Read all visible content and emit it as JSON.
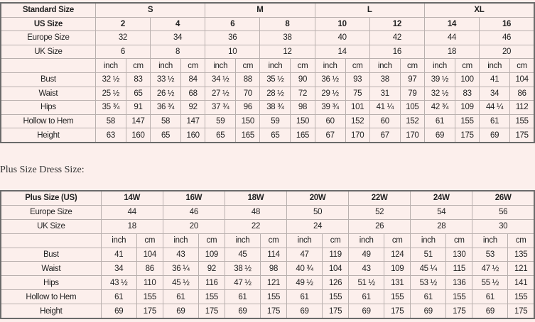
{
  "standard": {
    "header_label": "Standard Size",
    "groups": [
      "S",
      "M",
      "L",
      "XL"
    ],
    "us_label": "US Size",
    "us": [
      "2",
      "4",
      "6",
      "8",
      "10",
      "12",
      "14",
      "16"
    ],
    "europe_label": "Europe Size",
    "europe": [
      "32",
      "34",
      "36",
      "38",
      "40",
      "42",
      "44",
      "46"
    ],
    "uk_label": "UK Size",
    "uk": [
      "6",
      "8",
      "10",
      "12",
      "14",
      "16",
      "18",
      "20"
    ],
    "unit_inch": "inch",
    "unit_cm": "cm",
    "rows": [
      {
        "label": "Bust",
        "values": [
          "32 ½",
          "83",
          "33 ½",
          "84",
          "34 ½",
          "88",
          "35 ½",
          "90",
          "36 ½",
          "93",
          "38",
          "97",
          "39 ½",
          "100",
          "41",
          "104"
        ]
      },
      {
        "label": "Waist",
        "values": [
          "25 ½",
          "65",
          "26 ½",
          "68",
          "27 ½",
          "70",
          "28 ½",
          "72",
          "29 ½",
          "75",
          "31",
          "79",
          "32 ½",
          "83",
          "34",
          "86"
        ]
      },
      {
        "label": "Hips",
        "values": [
          "35 ¾",
          "91",
          "36 ¾",
          "92",
          "37 ¾",
          "96",
          "38 ¾",
          "98",
          "39 ¾",
          "101",
          "41 ¼",
          "105",
          "42 ¾",
          "109",
          "44 ¼",
          "112"
        ]
      },
      {
        "label": "Hollow to Hem",
        "values": [
          "58",
          "147",
          "58",
          "147",
          "59",
          "150",
          "59",
          "150",
          "60",
          "152",
          "60",
          "152",
          "61",
          "155",
          "61",
          "155"
        ]
      },
      {
        "label": "Height",
        "values": [
          "63",
          "160",
          "65",
          "160",
          "65",
          "165",
          "65",
          "165",
          "67",
          "170",
          "67",
          "170",
          "69",
          "175",
          "69",
          "175"
        ]
      }
    ]
  },
  "plus_title": "Plus Size Dress Size:",
  "plus": {
    "header_label": "Plus Size (US)",
    "us": [
      "14W",
      "16W",
      "18W",
      "20W",
      "22W",
      "24W",
      "26W"
    ],
    "europe_label": "Europe Size",
    "europe": [
      "44",
      "46",
      "48",
      "50",
      "52",
      "54",
      "56"
    ],
    "uk_label": "UK Size",
    "uk": [
      "18",
      "20",
      "22",
      "24",
      "26",
      "28",
      "30"
    ],
    "unit_inch": "inch",
    "unit_cm": "cm",
    "rows": [
      {
        "label": "Bust",
        "values": [
          "41",
          "104",
          "43",
          "109",
          "45",
          "114",
          "47",
          "119",
          "49",
          "124",
          "51",
          "130",
          "53",
          "135"
        ]
      },
      {
        "label": "Waist",
        "values": [
          "34",
          "86",
          "36 ¼",
          "92",
          "38 ½",
          "98",
          "40 ¾",
          "104",
          "43",
          "109",
          "45 ¼",
          "115",
          "47 ½",
          "121"
        ]
      },
      {
        "label": "Hips",
        "values": [
          "43 ½",
          "110",
          "45 ½",
          "116",
          "47 ½",
          "121",
          "49 ½",
          "126",
          "51 ½",
          "131",
          "53 ½",
          "136",
          "55 ½",
          "141"
        ]
      },
      {
        "label": "Hollow to Hem",
        "values": [
          "61",
          "155",
          "61",
          "155",
          "61",
          "155",
          "61",
          "155",
          "61",
          "155",
          "61",
          "155",
          "61",
          "155"
        ]
      },
      {
        "label": "Height",
        "values": [
          "69",
          "175",
          "69",
          "175",
          "69",
          "175",
          "69",
          "175",
          "69",
          "175",
          "69",
          "175",
          "69",
          "175"
        ]
      }
    ]
  }
}
